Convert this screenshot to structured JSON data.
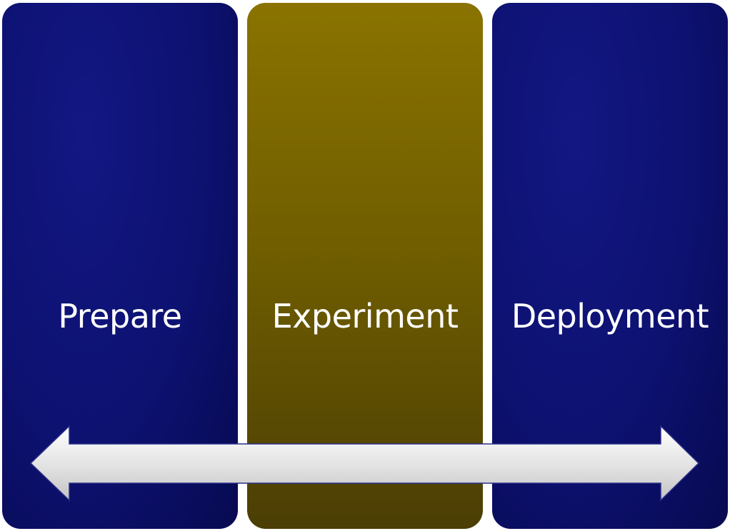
{
  "phases": [
    {
      "label": "Prepare",
      "color": "#0d1170"
    },
    {
      "label": "Experiment",
      "color": "#7a6500"
    },
    {
      "label": "Deployment",
      "color": "#0d1170"
    }
  ],
  "arrow": {
    "type": "double-headed",
    "color": "#e6e6e6"
  }
}
